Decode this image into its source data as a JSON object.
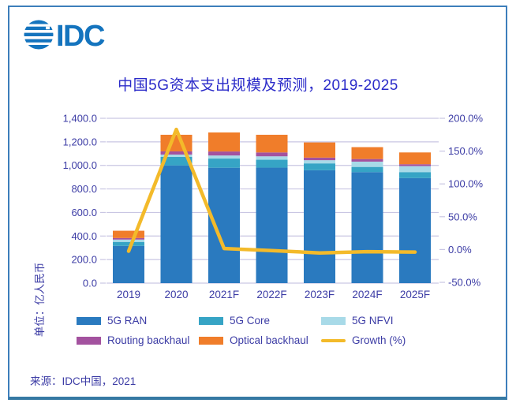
{
  "brand": {
    "logo_text": "IDC"
  },
  "title": "中国5G资本支出规模及预测，2019-2025",
  "y_axis_unit": "单位：亿人民币",
  "source": "来源：IDC中国，2021",
  "colors": {
    "brand_blue": "#1474BE",
    "title_text": "#2B2BC9",
    "axis_text": "#3C3CA5",
    "gridline": "#C9C6E3",
    "frame_border": "#3D7EBB"
  },
  "chart_data": {
    "type": "stacked-bar + line combo",
    "title": "中国5G资本支出规模及预测，2019-2025",
    "unit": "亿人民币",
    "categories": [
      "2019",
      "2020",
      "2021F",
      "2022F",
      "2023F",
      "2024F",
      "2025F"
    ],
    "series": [
      {
        "name": "5G RAN",
        "color": "#2A7ABF",
        "values": [
          316,
          999,
          980,
          981,
          959,
          943,
          892
        ]
      },
      {
        "name": "5G Core",
        "color": "#36A4C5",
        "values": [
          34,
          73,
          78,
          67,
          58,
          44,
          51
        ]
      },
      {
        "name": "5G NFVI",
        "color": "#A8DAE8",
        "values": [
          20,
          20,
          26,
          29,
          27,
          45,
          51
        ]
      },
      {
        "name": "Routing backhaul",
        "color": "#A3529F",
        "values": [
          13,
          27,
          34,
          33,
          22,
          22,
          16
        ]
      },
      {
        "name": "Optical backhaul",
        "color": "#F07D2A",
        "values": [
          62,
          141,
          162,
          150,
          129,
          101,
          100
        ]
      }
    ],
    "totals": [
      445,
      1260,
      1280,
      1260,
      1195,
      1155,
      1110
    ],
    "line_series": {
      "name": "Growth (%)",
      "color": "#F3BA2A",
      "values": [
        -2.5,
        183.1,
        1.6,
        -1.6,
        -5.2,
        -3.3,
        -3.9
      ]
    },
    "left_axis": {
      "label": "单位：亿人民币",
      "min": 0,
      "max": 1400,
      "step": 200,
      "tick_values": [
        0,
        200,
        400,
        600,
        800,
        1000,
        1200,
        1400
      ],
      "tick_labels": [
        "0.0",
        "200.0",
        "400.0",
        "600.0",
        "800.0",
        "1,000.0",
        "1,200.0",
        "1,400.0"
      ]
    },
    "right_axis": {
      "min": -50,
      "max": 200,
      "step": 50,
      "tick_values": [
        -50,
        0,
        50,
        100,
        150,
        200
      ],
      "tick_labels": [
        "-50.0%",
        "0.0%",
        "50.0%",
        "100.0%",
        "150.0%",
        "200.0%"
      ]
    },
    "grid": true,
    "legend_position": "bottom",
    "legend": [
      {
        "label": "5G RAN",
        "color": "#2A7ABF",
        "type": "box"
      },
      {
        "label": "5G Core",
        "color": "#36A4C5",
        "type": "box"
      },
      {
        "label": "5G NFVI",
        "color": "#A8DAE8",
        "type": "box"
      },
      {
        "label": "Routing backhaul",
        "color": "#A3529F",
        "type": "box"
      },
      {
        "label": "Optical backhaul",
        "color": "#F07D2A",
        "type": "box"
      },
      {
        "label": "Growth (%)",
        "color": "#F3BA2A",
        "type": "line"
      }
    ]
  }
}
